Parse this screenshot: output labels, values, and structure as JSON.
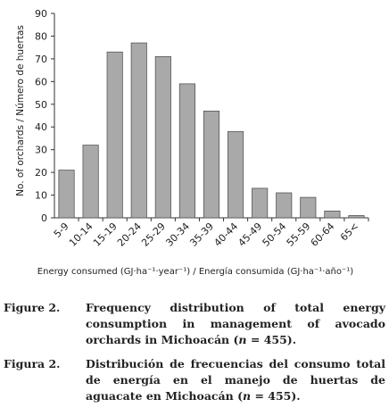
{
  "chart_data": {
    "type": "bar",
    "categories": [
      "5-9",
      "10-14",
      "15-19",
      "20-24",
      "25-29",
      "30-34",
      "35-39",
      "40-44",
      "45-49",
      "50-54",
      "55-59",
      "60-64",
      "65<"
    ],
    "values": [
      21,
      32,
      73,
      77,
      71,
      59,
      47,
      38,
      13,
      11,
      9,
      3,
      1
    ],
    "ylabel": "No. of orchards / Número de huertas",
    "xlabel": "Energy consumed (GJ·ha⁻¹·year⁻¹) / Energía consumida (GJ·ha⁻¹·año⁻¹)",
    "ylim": [
      0,
      90
    ],
    "yticks": [
      0,
      10,
      20,
      30,
      40,
      50,
      60,
      70,
      80,
      90
    ],
    "grid": false,
    "bar_color": "#a9a9a9"
  },
  "captions": {
    "english": {
      "label": "Figure 2.",
      "text": "Frequency distribution of total energy consumption in management of avocado orchards in Michoacán (n = 455)."
    },
    "spanish": {
      "label": "Figura 2.",
      "text": "Distribución de frecuencias del consumo total de energía en el manejo de huertas de aguacate en Michoacán (n = 455)."
    }
  }
}
